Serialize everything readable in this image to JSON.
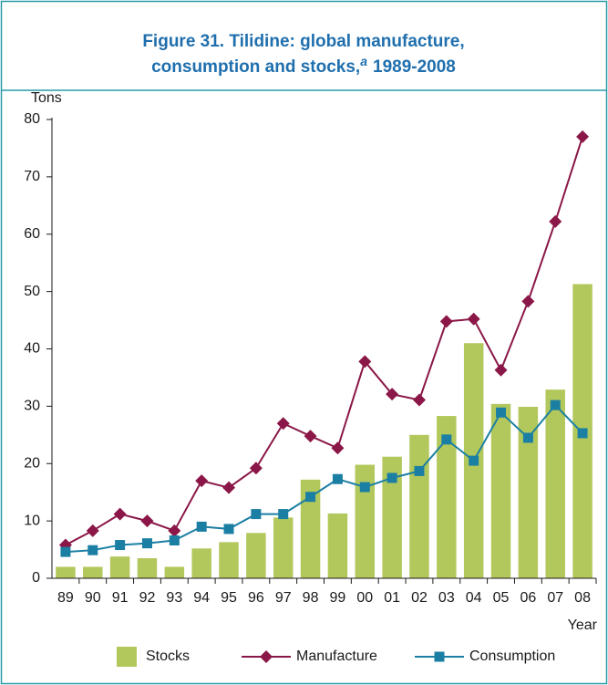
{
  "chart_data": {
    "type": "bar-line",
    "title_lines": [
      "Figure 31.   Tilidine: global manufacture,",
      "consumption and stocks,"
    ],
    "title_marker": "a",
    "title_end": "1989-2008",
    "y_label": "Tons",
    "x_label": "Year",
    "categories": [
      "89",
      "90",
      "91",
      "92",
      "93",
      "94",
      "95",
      "96",
      "97",
      "98",
      "99",
      "00",
      "01",
      "02",
      "03",
      "04",
      "05",
      "06",
      "07",
      "08"
    ],
    "series": [
      {
        "name": "Stocks",
        "type": "bar",
        "color": "#b3c85c",
        "values": [
          2,
          2,
          3.8,
          3.5,
          2,
          5.2,
          6.3,
          7.9,
          10.6,
          17.2,
          11.3,
          19.8,
          21.2,
          25,
          28.3,
          41,
          30.4,
          29.9,
          32.9,
          51.3
        ]
      },
      {
        "name": "Manufacture",
        "type": "line",
        "marker": "diamond",
        "color": "#8a1747",
        "values": [
          5.8,
          8.3,
          11.2,
          10,
          8.3,
          17,
          15.8,
          19.2,
          27,
          24.8,
          22.7,
          37.8,
          32.1,
          31.1,
          44.8,
          45.2,
          36.3,
          48.3,
          62.2,
          77
        ]
      },
      {
        "name": "Consumption",
        "type": "line",
        "marker": "square",
        "color": "#1b7fa3",
        "values": [
          4.6,
          4.9,
          5.8,
          6.1,
          6.6,
          9,
          8.6,
          11.2,
          11.2,
          14.2,
          17.3,
          15.9,
          17.5,
          18.7,
          24.2,
          20.5,
          28.9,
          24.5,
          30.2,
          25.3
        ]
      }
    ],
    "ylim": [
      0,
      80
    ],
    "yticks": [
      0,
      10,
      20,
      30,
      40,
      50,
      60,
      70,
      80
    ],
    "grid": false,
    "legend": "bottom"
  }
}
